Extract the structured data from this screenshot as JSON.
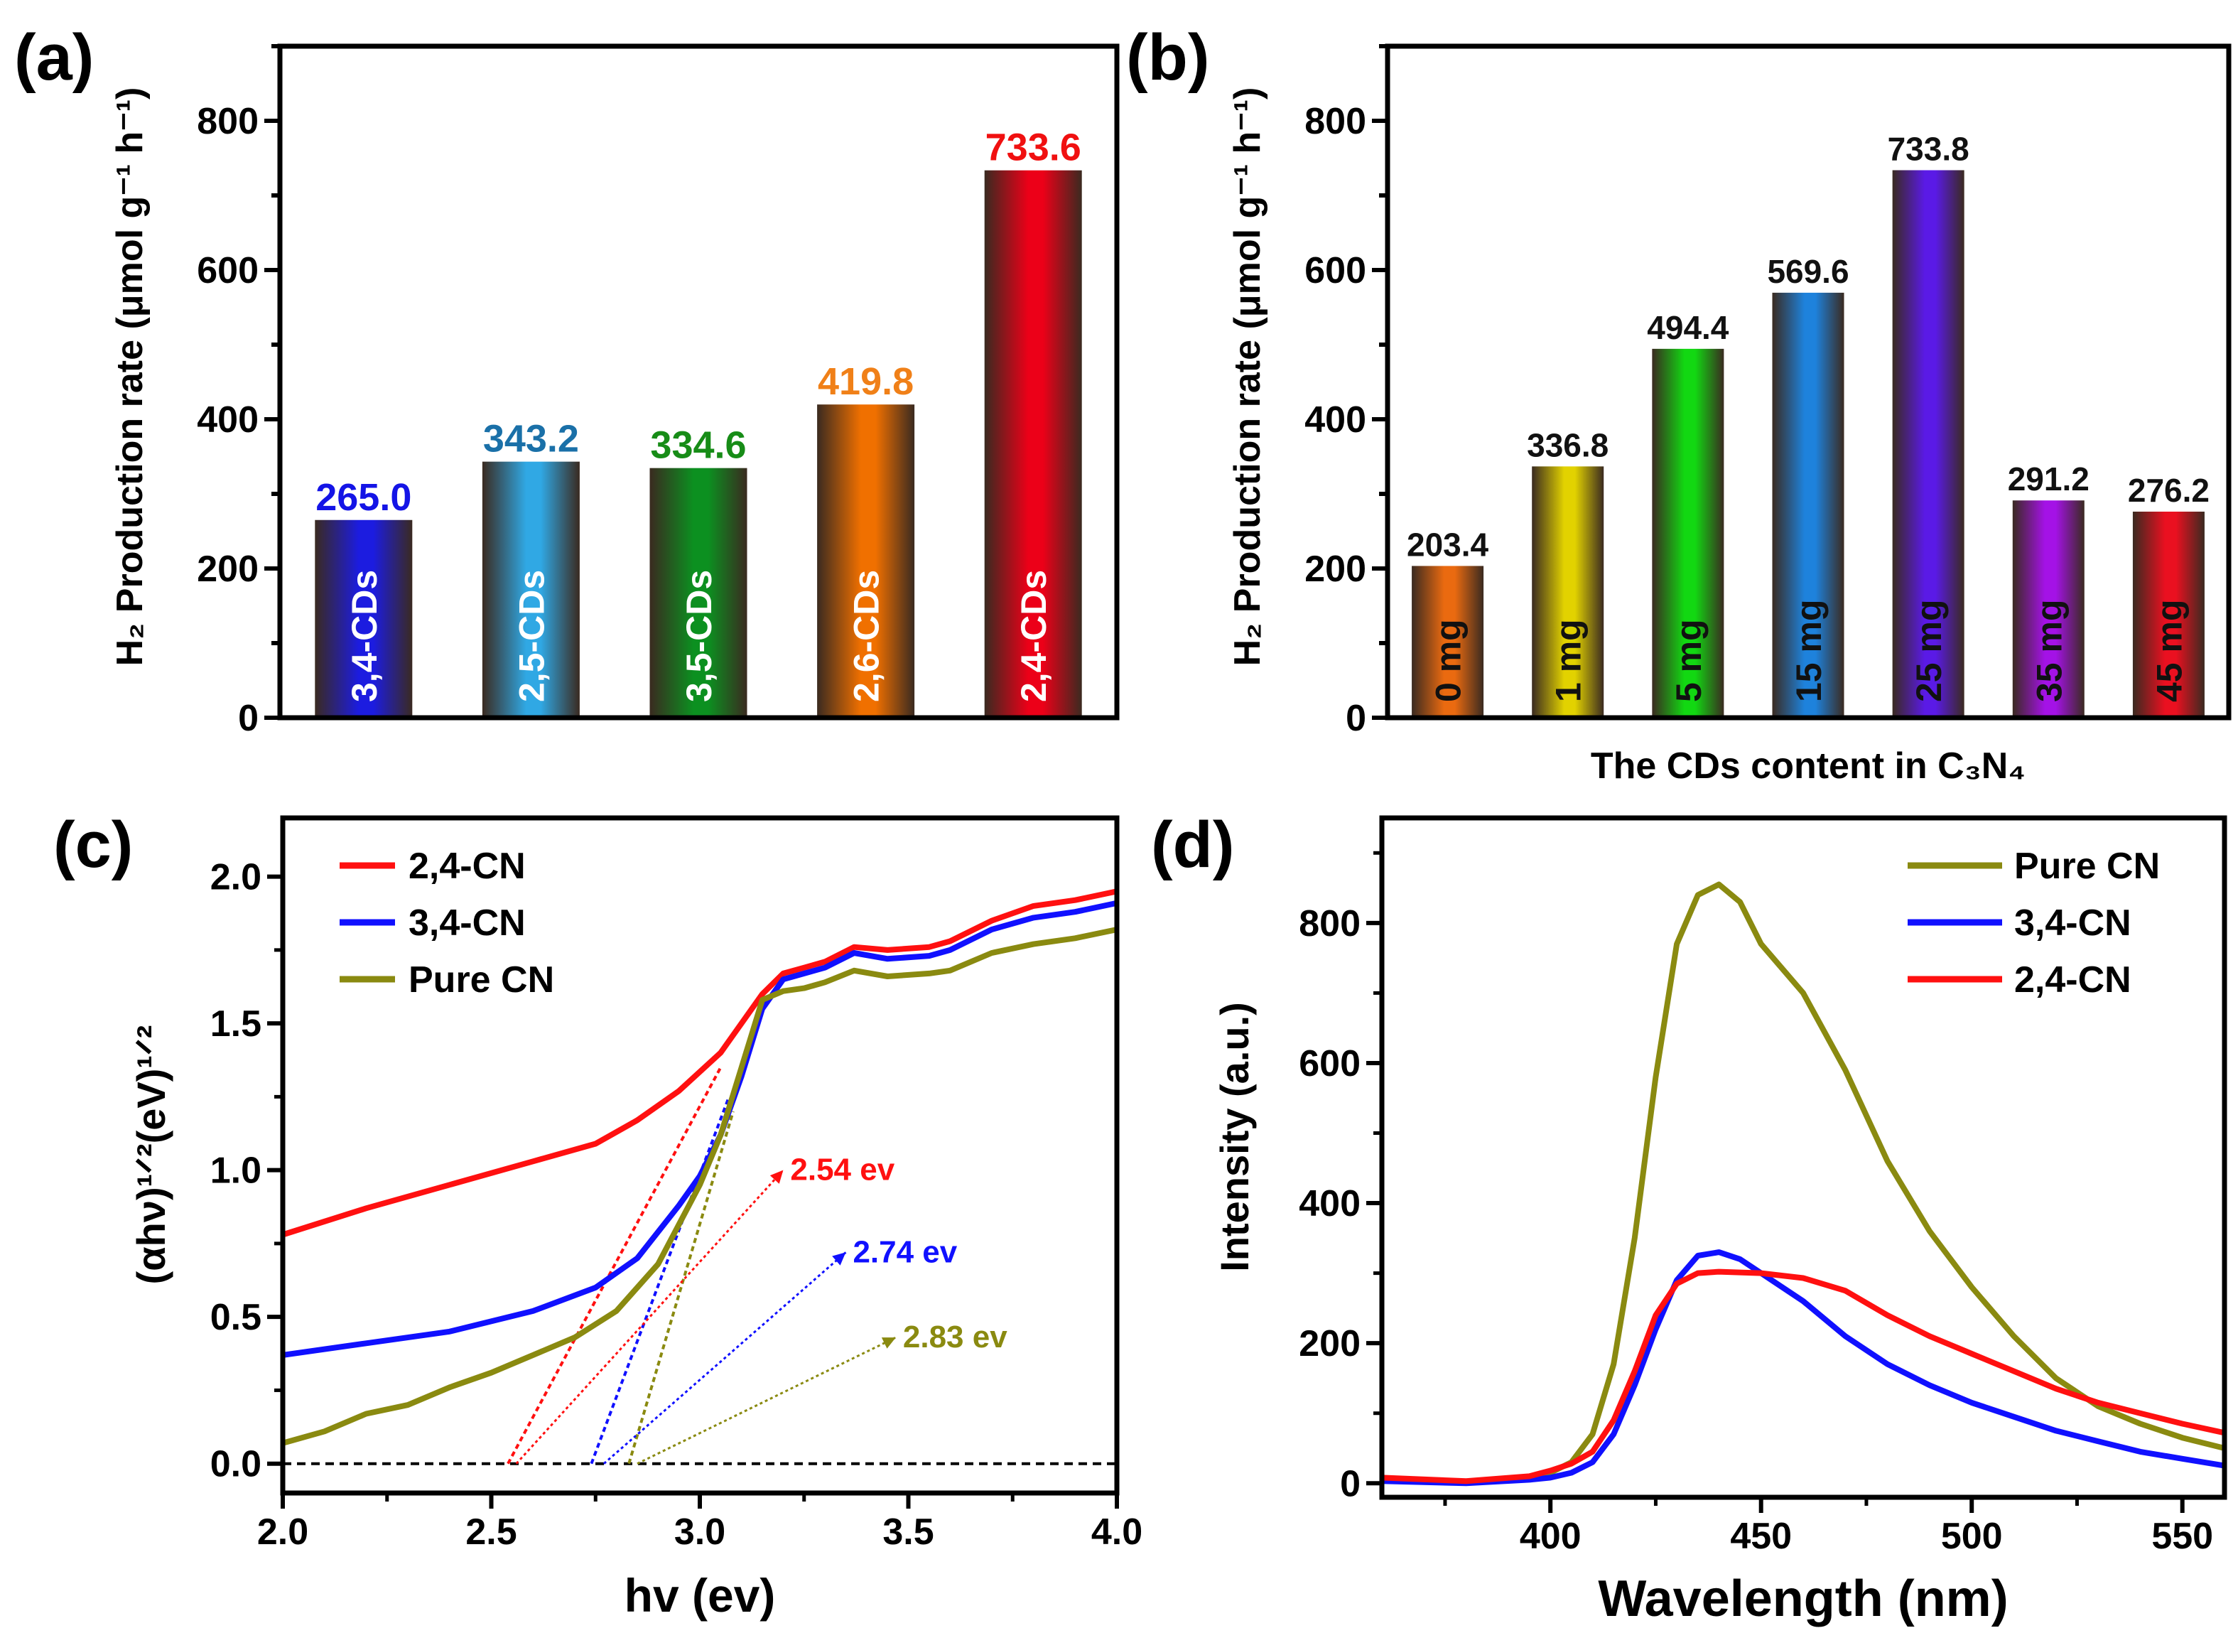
{
  "panel_labels": [
    "(a)",
    "(b)",
    "(c)",
    "(d)"
  ],
  "chart_data": [
    {
      "id": "a",
      "type": "bar",
      "ylabel": "H₂ Production rate (μmol g⁻¹ h⁻¹)",
      "ylim": [
        0,
        900
      ],
      "yticks": [
        0,
        200,
        400,
        600,
        800
      ],
      "categories": [
        "3,4-CDs",
        "2,5-CDs",
        "3,5-CDs",
        "2,6-CDs",
        "2,4-CDs"
      ],
      "values": [
        265.0,
        343.2,
        334.6,
        419.8,
        733.6
      ],
      "value_labels": [
        "265.0",
        "343.2",
        "334.6",
        "419.8",
        "733.6"
      ],
      "bar_colors": [
        "#1c1ce0",
        "#30a8e4",
        "#0c9020",
        "#f07000",
        "#ec0018"
      ],
      "value_label_colors": [
        "#1414e6",
        "#1a70a8",
        "#178c17",
        "#f08018",
        "#f01010"
      ],
      "category_label_color": "#ffffff"
    },
    {
      "id": "b",
      "type": "bar",
      "xlabel": "The CDs content in C₃N₄",
      "ylabel": "H₂ Production rate (μmol g⁻¹ h⁻¹)",
      "ylim": [
        0,
        900
      ],
      "yticks": [
        0,
        200,
        400,
        600,
        800
      ],
      "categories": [
        "0 mg",
        "1 mg",
        "5 mg",
        "15 mg",
        "25 mg",
        "35 mg",
        "45 mg"
      ],
      "values": [
        203.4,
        336.8,
        494.4,
        569.6,
        733.8,
        291.2,
        276.2
      ],
      "value_labels": [
        "203.4",
        "336.8",
        "494.4",
        "569.6",
        "733.8",
        "291.2",
        "276.2"
      ],
      "bar_colors": [
        "#ea6a10",
        "#e2d200",
        "#12d812",
        "#1e82dc",
        "#5a1ae6",
        "#a412e6",
        "#ea1020"
      ],
      "value_label_colors": [
        "#111111",
        "#111111",
        "#111111",
        "#111111",
        "#111111",
        "#111111",
        "#111111"
      ],
      "category_label_color": "#111111"
    },
    {
      "id": "c",
      "type": "line",
      "xlabel": "hv (ev)",
      "ylabel": "(αhν)¹ᐟ²(eV)¹ᐟ²",
      "xlim": [
        2.0,
        4.0
      ],
      "ylim": [
        -0.1,
        2.2
      ],
      "xticks": [
        "2.0",
        "2.5",
        "3.0",
        "3.5",
        "4.0"
      ],
      "yticks": [
        "0.0",
        "0.5",
        "1.0",
        "1.5",
        "2.0"
      ],
      "legend": "top-left",
      "series": [
        {
          "name": "2,4-CN",
          "color": "#ff1010",
          "x": [
            2.0,
            2.2,
            2.4,
            2.6,
            2.75,
            2.85,
            2.95,
            3.05,
            3.1,
            3.15,
            3.2,
            3.25,
            3.3,
            3.37,
            3.45,
            3.55,
            3.6,
            3.7,
            3.8,
            3.9,
            4.0
          ],
          "y": [
            0.78,
            0.87,
            0.95,
            1.03,
            1.09,
            1.17,
            1.27,
            1.4,
            1.5,
            1.6,
            1.67,
            1.69,
            1.71,
            1.76,
            1.75,
            1.76,
            1.78,
            1.85,
            1.9,
            1.92,
            1.95
          ]
        },
        {
          "name": "3,4-CN",
          "color": "#1010ff",
          "x": [
            2.0,
            2.2,
            2.4,
            2.6,
            2.75,
            2.85,
            2.95,
            3.0,
            3.05,
            3.1,
            3.15,
            3.2,
            3.25,
            3.3,
            3.37,
            3.45,
            3.55,
            3.6,
            3.7,
            3.8,
            3.9,
            4.0
          ],
          "y": [
            0.37,
            0.41,
            0.45,
            0.52,
            0.6,
            0.7,
            0.88,
            0.98,
            1.12,
            1.32,
            1.55,
            1.65,
            1.67,
            1.69,
            1.74,
            1.72,
            1.73,
            1.75,
            1.82,
            1.86,
            1.88,
            1.91
          ]
        },
        {
          "name": "Pure CN",
          "color": "#8a8a10",
          "x": [
            2.0,
            2.1,
            2.2,
            2.3,
            2.4,
            2.5,
            2.6,
            2.7,
            2.8,
            2.9,
            3.0,
            3.05,
            3.1,
            3.15,
            3.2,
            3.25,
            3.3,
            3.37,
            3.45,
            3.55,
            3.6,
            3.7,
            3.8,
            3.9,
            4.0
          ],
          "y": [
            0.07,
            0.11,
            0.17,
            0.2,
            0.26,
            0.31,
            0.37,
            0.43,
            0.52,
            0.68,
            0.95,
            1.12,
            1.35,
            1.58,
            1.61,
            1.62,
            1.64,
            1.68,
            1.66,
            1.67,
            1.68,
            1.74,
            1.77,
            1.79,
            1.82
          ]
        }
      ],
      "tangents": [
        {
          "color": "#ff1010",
          "from": [
            2.54,
            0
          ],
          "to": [
            3.05,
            1.35
          ]
        },
        {
          "color": "#1010ff",
          "from": [
            2.74,
            0
          ],
          "to": [
            3.07,
            1.25
          ]
        },
        {
          "color": "#8a8a10",
          "from": [
            2.83,
            0
          ],
          "to": [
            3.08,
            1.2
          ]
        }
      ],
      "annotations": [
        {
          "text": "2.54 ev",
          "color": "#ff1010",
          "arrow_from": [
            2.56,
            0.0
          ],
          "arrow_to": [
            3.2,
            1.0
          ]
        },
        {
          "text": "2.74 ev",
          "color": "#1010ff",
          "arrow_from": [
            2.77,
            0.0
          ],
          "arrow_to": [
            3.35,
            0.72
          ]
        },
        {
          "text": "2.83 ev",
          "color": "#8a8a10",
          "arrow_from": [
            2.85,
            0.0
          ],
          "arrow_to": [
            3.47,
            0.43
          ]
        }
      ],
      "baseline": 0
    },
    {
      "id": "d",
      "type": "line",
      "xlabel": "Wavelength (nm)",
      "ylabel": "Intensity (a.u.)",
      "xlim": [
        360,
        560
      ],
      "ylim": [
        -20,
        950
      ],
      "xticks": [
        "400",
        "450",
        "500",
        "550"
      ],
      "yticks": [
        "0",
        "200",
        "400",
        "600",
        "800"
      ],
      "legend": "top-right",
      "series": [
        {
          "name": "Pure CN",
          "color": "#8a8a10",
          "x": [
            360,
            380,
            395,
            400,
            405,
            410,
            415,
            420,
            425,
            430,
            435,
            440,
            445,
            450,
            460,
            470,
            480,
            490,
            500,
            510,
            520,
            530,
            540,
            550,
            560
          ],
          "y": [
            5,
            2,
            8,
            15,
            30,
            70,
            170,
            350,
            580,
            770,
            840,
            855,
            830,
            770,
            700,
            590,
            460,
            360,
            280,
            210,
            150,
            110,
            85,
            65,
            50
          ]
        },
        {
          "name": "3,4-CN",
          "color": "#1010ff",
          "x": [
            360,
            380,
            395,
            400,
            405,
            410,
            415,
            420,
            425,
            430,
            435,
            440,
            445,
            450,
            460,
            470,
            480,
            490,
            500,
            510,
            520,
            530,
            540,
            550,
            560
          ],
          "y": [
            3,
            0,
            5,
            8,
            15,
            30,
            70,
            140,
            220,
            290,
            325,
            330,
            320,
            300,
            260,
            210,
            170,
            140,
            115,
            95,
            75,
            60,
            45,
            35,
            25
          ]
        },
        {
          "name": "2,4-CN",
          "color": "#ff1010",
          "x": [
            360,
            380,
            395,
            400,
            405,
            410,
            415,
            420,
            425,
            430,
            435,
            440,
            450,
            460,
            470,
            480,
            490,
            500,
            510,
            520,
            530,
            540,
            550,
            560
          ],
          "y": [
            8,
            3,
            10,
            18,
            28,
            45,
            90,
            160,
            240,
            285,
            300,
            302,
            300,
            293,
            275,
            240,
            210,
            185,
            160,
            135,
            115,
            100,
            85,
            72
          ]
        }
      ]
    }
  ]
}
